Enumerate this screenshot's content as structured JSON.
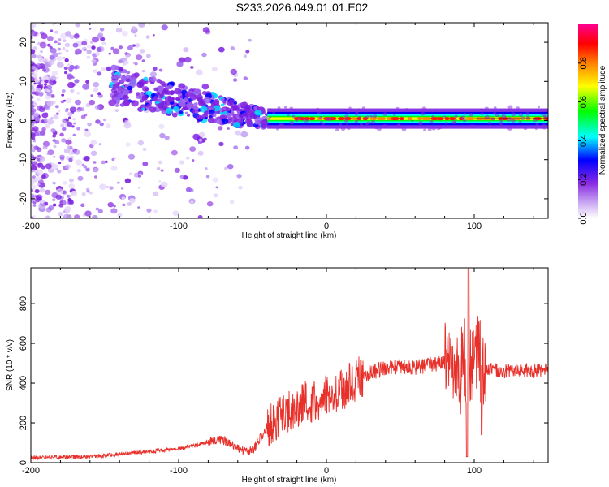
{
  "figure": {
    "title": "S233.2026.049.01.01.E02"
  },
  "chart_data": [
    {
      "type": "heatmap",
      "xlabel": "Height of straight line (km)",
      "ylabel": "Frequency (Hz)",
      "xlim": [
        -200,
        150
      ],
      "ylim": [
        -25,
        25
      ],
      "xticks": [
        -200,
        -100,
        0,
        100
      ],
      "yticks": [
        -20,
        -10,
        0,
        10,
        20
      ],
      "xtick_labels": [
        "-200",
        "-100",
        "0",
        "100"
      ],
      "ytick_labels": [
        "-20",
        "-10",
        "0",
        "10",
        "20"
      ],
      "description_of_values": "Doppler/frequency trace near 0 Hz for heights above about -40 km, scattered broadband noise at lower heights",
      "trace_center_hz": 0.5,
      "colorbar": {
        "label": "Normalized spectral amplitude",
        "range": [
          0.0,
          1.0
        ],
        "ticks": [
          0.0,
          0.2,
          0.4,
          0.6,
          0.8
        ],
        "tick_labels": [
          "0.0",
          "0.2",
          "0.4",
          "0.6",
          "0.8"
        ],
        "colormap": [
          "#ffffff",
          "#b58cf0",
          "#8a2be2",
          "#0000ff",
          "#00ffff",
          "#00ff00",
          "#ffff00",
          "#ff8000",
          "#ff0000",
          "#ff00aa"
        ]
      }
    },
    {
      "type": "line",
      "xlabel": "Height of straight line (km)",
      "ylabel": "SNR (10 * v/v)",
      "xlim": [
        -200,
        150
      ],
      "ylim": [
        0,
        980
      ],
      "xticks": [
        -200,
        -100,
        0,
        100
      ],
      "yticks": [
        0,
        200,
        400,
        600,
        800
      ],
      "xtick_labels": [
        "-200",
        "-100",
        "0",
        "100"
      ],
      "ytick_labels": [
        "0",
        "200",
        "400",
        "600",
        "800"
      ],
      "series": [
        {
          "name": "SNR",
          "color": "#e8302a",
          "x": [
            -200,
            -180,
            -160,
            -150,
            -140,
            -120,
            -100,
            -90,
            -80,
            -75,
            -70,
            -60,
            -55,
            -50,
            -45,
            -40,
            -35,
            -30,
            -25,
            -20,
            -15,
            -10,
            -5,
            0,
            5,
            10,
            15,
            20,
            25,
            30,
            40,
            50,
            60,
            70,
            80,
            85,
            88,
            90,
            92,
            94,
            95,
            96,
            98,
            100,
            102,
            105,
            110,
            120,
            130,
            140,
            150
          ],
          "y": [
            25,
            28,
            30,
            35,
            45,
            55,
            70,
            85,
            105,
            115,
            110,
            75,
            60,
            60,
            120,
            180,
            210,
            240,
            260,
            280,
            300,
            310,
            320,
            350,
            360,
            370,
            390,
            420,
            440,
            455,
            475,
            485,
            480,
            490,
            500,
            520,
            480,
            420,
            540,
            500,
            560,
            420,
            500,
            460,
            520,
            490,
            470,
            460,
            465,
            460,
            470
          ]
        }
      ]
    }
  ]
}
